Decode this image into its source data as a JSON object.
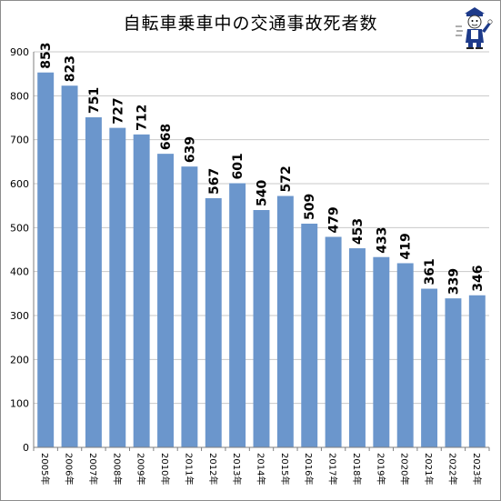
{
  "chart_data": {
    "type": "bar",
    "title": "自転車乗車中の交通事故死者数",
    "xlabel": "",
    "ylabel": "",
    "categories": [
      "2005年",
      "2006年",
      "2007年",
      "2008年",
      "2009年",
      "2010年",
      "2011年",
      "2012年",
      "2013年",
      "2014年",
      "2015年",
      "2016年",
      "2017年",
      "2018年",
      "2019年",
      "2020年",
      "2021年",
      "2022年",
      "2023年"
    ],
    "values": [
      853,
      823,
      751,
      727,
      712,
      668,
      639,
      567,
      601,
      540,
      572,
      509,
      479,
      453,
      433,
      419,
      361,
      339,
      346
    ],
    "data_labels": [
      "853",
      "823",
      "751",
      "727",
      "712",
      "668",
      "639",
      "567",
      "601",
      "540",
      "572",
      "509",
      "479",
      "453",
      "433",
      "419",
      "361",
      "339",
      "346"
    ],
    "ylim": [
      0,
      900
    ],
    "yticks": [
      "0",
      "100",
      "200",
      "300",
      "400",
      "500",
      "600",
      "700",
      "800",
      "900"
    ],
    "grid": true,
    "legend": "none",
    "bar_color": "#6b96cc",
    "grid_color": "#c8c8c8"
  },
  "logo": {
    "icon": "mascot-character-icon"
  }
}
